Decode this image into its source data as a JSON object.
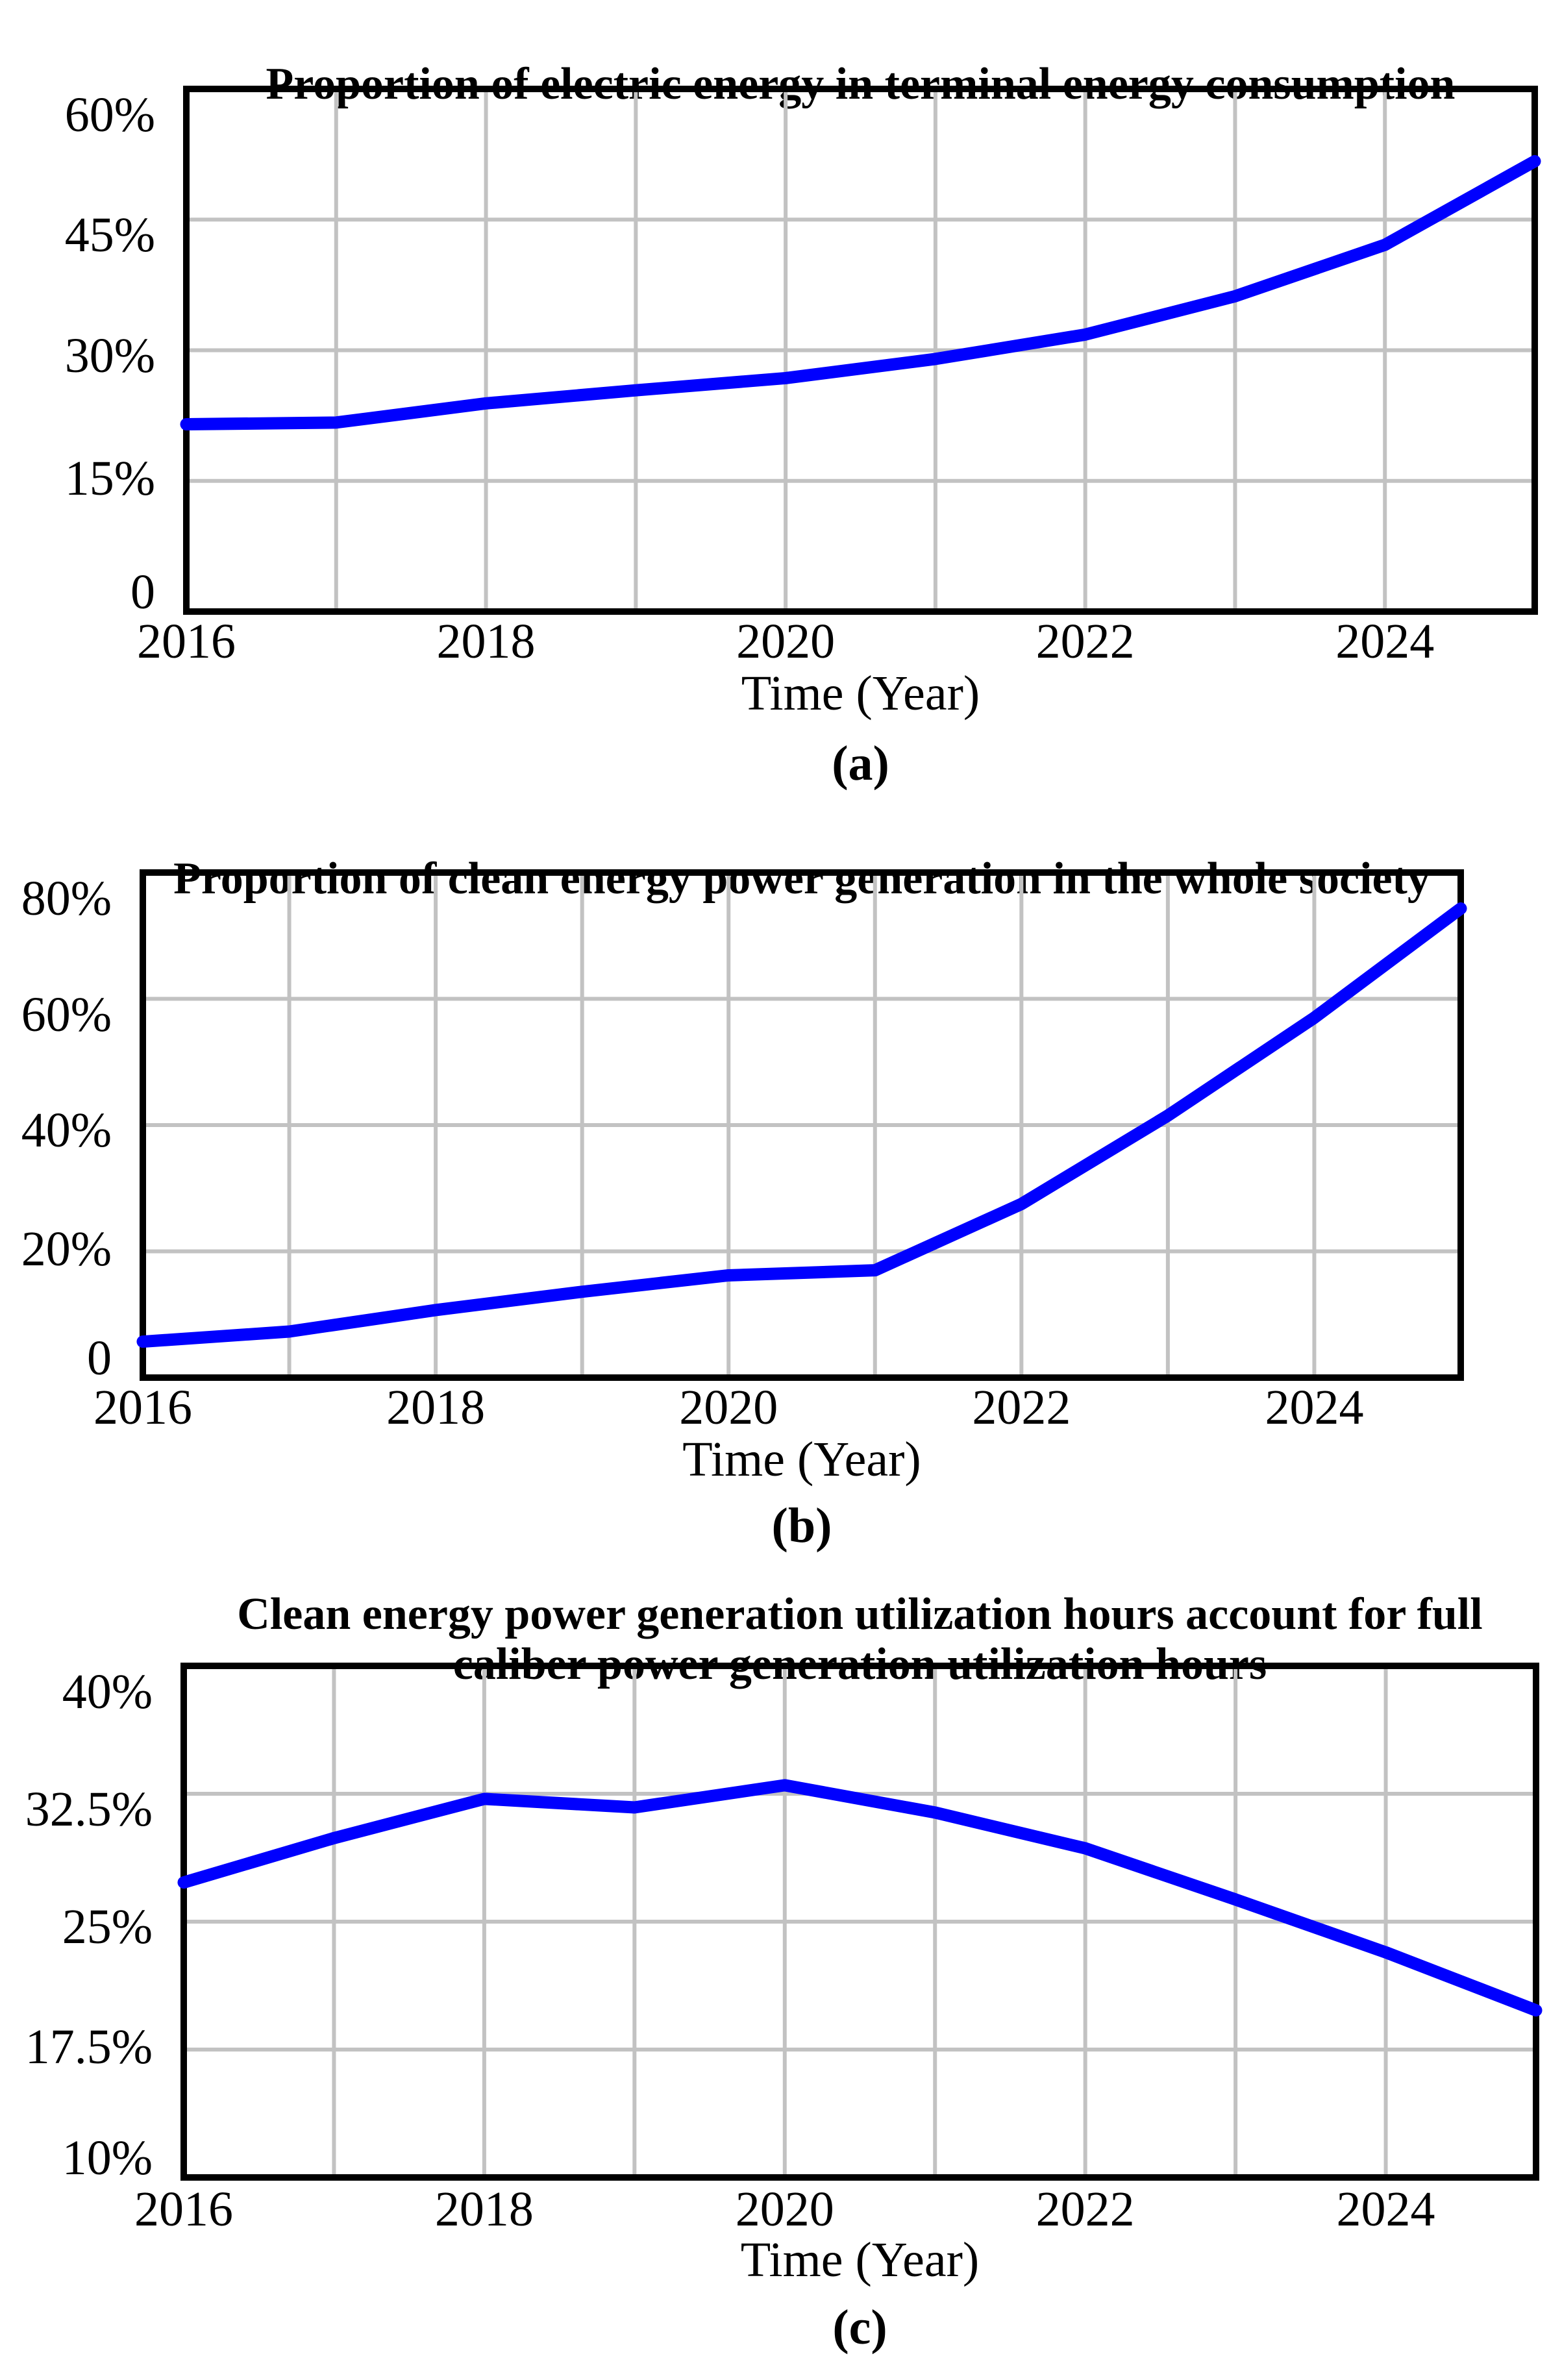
{
  "figure": {
    "background": "#ffffff",
    "caption_labels": [
      "(a)",
      "(b)",
      "(c)"
    ]
  },
  "style": {
    "line_color": "#0000FE",
    "grid_color": "#c2c2c2",
    "border_color": "#000000",
    "text_color": "#000000"
  },
  "chart_data": [
    {
      "id": "a",
      "type": "line",
      "title": "Proportion of electric energy in terminal energy consumption",
      "caption": "(a)",
      "xlabel": "Time (Year)",
      "x": [
        2016,
        2017,
        2018,
        2019,
        2020,
        2021,
        2022,
        2023,
        2024,
        2025
      ],
      "values": [
        21.5,
        21.7,
        23.9,
        25.4,
        26.8,
        29.0,
        31.8,
        36.2,
        42.1,
        51.7
      ],
      "xlim": [
        2016,
        2025
      ],
      "ylim": [
        0,
        60
      ],
      "grid": true,
      "y_gridlines": [
        15,
        30,
        45
      ],
      "y_ticks": [
        {
          "label": "60%",
          "value": 60
        },
        {
          "label": "45%",
          "value": 45
        },
        {
          "label": "30%",
          "value": 30
        },
        {
          "label": "15%",
          "value": 15
        },
        {
          "label": "0",
          "value": 0
        }
      ],
      "x_ticks": [
        {
          "label": "2016",
          "year": 2016
        },
        {
          "label": "2018",
          "year": 2018
        },
        {
          "label": "2020",
          "year": 2020
        },
        {
          "label": "2022",
          "year": 2022
        },
        {
          "label": "2024",
          "year": 2024
        }
      ]
    },
    {
      "id": "b",
      "type": "line",
      "title": "Proportion of clean energy power generation in the whole society",
      "caption": "(b)",
      "xlabel": "Time (Year)",
      "x": [
        2016,
        2017,
        2018,
        2019,
        2020,
        2021,
        2022,
        2023,
        2024,
        2025
      ],
      "values": [
        5.7,
        7.3,
        10.7,
        13.6,
        16.2,
        17.0,
        27.5,
        41.5,
        57.0,
        74.3
      ],
      "xlim": [
        2016,
        2025
      ],
      "ylim": [
        0,
        80
      ],
      "grid": true,
      "y_gridlines": [
        20,
        40,
        60
      ],
      "y_ticks": [
        {
          "label": "80%",
          "value": 80
        },
        {
          "label": "60%",
          "value": 60
        },
        {
          "label": "40%",
          "value": 40
        },
        {
          "label": "20%",
          "value": 20
        },
        {
          "label": "0",
          "value": 0
        }
      ],
      "x_ticks": [
        {
          "label": "2016",
          "year": 2016
        },
        {
          "label": "2018",
          "year": 2018
        },
        {
          "label": "2020",
          "year": 2020
        },
        {
          "label": "2022",
          "year": 2022
        },
        {
          "label": "2024",
          "year": 2024
        }
      ]
    },
    {
      "id": "c",
      "type": "line",
      "title_lines": [
        "Clean energy power generation utilization hours account for full",
        "caliber power generation utilization hours"
      ],
      "caption": "(c)",
      "xlabel": "Time (Year)",
      "x": [
        2016,
        2017,
        2018,
        2019,
        2020,
        2021,
        2022,
        2023,
        2024,
        2025
      ],
      "values": [
        27.3,
        29.9,
        32.2,
        31.7,
        33.0,
        31.4,
        29.3,
        26.3,
        23.2,
        19.8
      ],
      "xlim": [
        2016,
        2025
      ],
      "ylim": [
        10,
        40
      ],
      "grid": true,
      "y_gridlines": [
        17.5,
        25,
        32.5
      ],
      "y_ticks": [
        {
          "label": "40%",
          "value": 40
        },
        {
          "label": "32.5%",
          "value": 32.5
        },
        {
          "label": "25%",
          "value": 25
        },
        {
          "label": "17.5%",
          "value": 17.5
        },
        {
          "label": "10%",
          "value": 10
        }
      ],
      "x_ticks": [
        {
          "label": "2016",
          "year": 2016
        },
        {
          "label": "2018",
          "year": 2018
        },
        {
          "label": "2020",
          "year": 2020
        },
        {
          "label": "2022",
          "year": 2022
        },
        {
          "label": "2024",
          "year": 2024
        }
      ]
    }
  ]
}
